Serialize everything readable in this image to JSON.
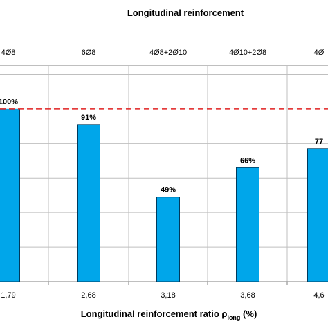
{
  "chart_data": {
    "type": "bar",
    "title": "Longitudinal  reinforcement",
    "xlabel": "Longitudinal  reinforcement ratio ρ",
    "xlabel_subscript": "long",
    "xlabel_unit": " (%)",
    "categories": [
      "1,79",
      "2,68",
      "3,18",
      "3,68",
      "4,6"
    ],
    "top_categories": [
      "4Ø8",
      "6Ø8",
      "4Ø8+2Ø10",
      "4Ø10+2Ø8",
      "4Ø"
    ],
    "values": [
      100,
      91,
      49,
      66,
      77
    ],
    "value_labels": [
      "100%",
      "91%",
      "49%",
      "66%",
      "77"
    ],
    "ylim": [
      0,
      125
    ],
    "reference_line": 100,
    "grid": true,
    "legend": "none",
    "colors": {
      "bar": "#00a6ea",
      "bar_stroke": "#003a5c",
      "reference": "#e02020",
      "grid": "#bfbfbf",
      "axis": "#7f7f7f"
    }
  }
}
